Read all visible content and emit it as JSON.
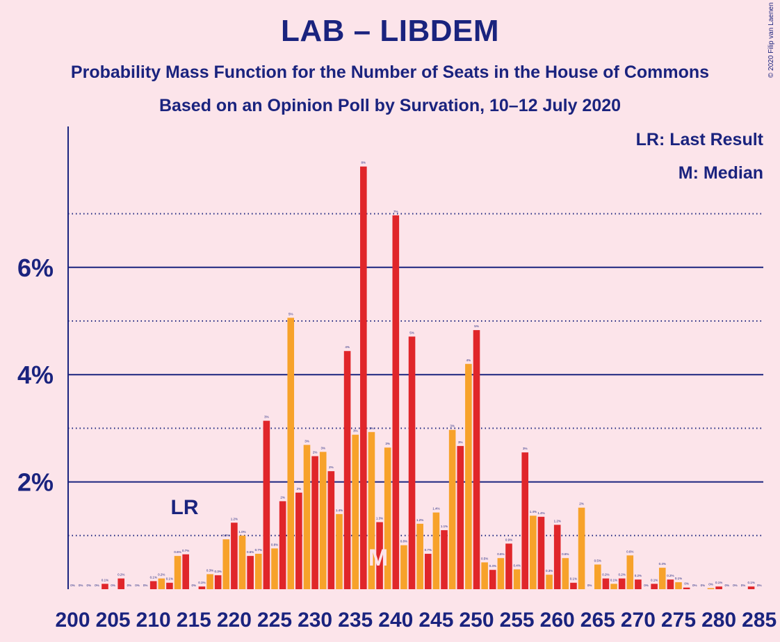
{
  "title": "LAB – LIBDEM",
  "subtitle": "Probability Mass Function for the Number of Seats in the House of Commons",
  "subtitle2": "Based on an Opinion Poll by Survation, 10–12 July 2020",
  "copyright": "© 2020 Filip van Laenen",
  "legend": {
    "last_result": "LR: Last Result",
    "median": "M: Median"
  },
  "colors": {
    "background": "#fce4ea",
    "text": "#1a237e",
    "bar_red": "#e0262a",
    "bar_orange": "#f7a22a",
    "median_marker": "#fce4ea"
  },
  "chart_data": {
    "type": "bar",
    "x_start": 200,
    "x_end": 285,
    "x_ticks": [
      200,
      205,
      210,
      215,
      220,
      225,
      230,
      235,
      240,
      245,
      250,
      255,
      260,
      265,
      270,
      275,
      280,
      285
    ],
    "y_ticks_major": [
      {
        "value": 2,
        "label": "2%"
      },
      {
        "value": 4,
        "label": "4%"
      },
      {
        "value": 6,
        "label": "6%"
      }
    ],
    "y_ticks_minor": [
      1,
      3,
      5,
      7
    ],
    "ylim": [
      0,
      8.6
    ],
    "last_result_seat": 213,
    "last_result_label": "LR",
    "median_seat": 238,
    "median_label": "M",
    "bars": [
      {
        "seat": 200,
        "value": 0.0,
        "label": "0%"
      },
      {
        "seat": 201,
        "value": 0.0,
        "label": "0%"
      },
      {
        "seat": 202,
        "value": 0.0,
        "label": "0%"
      },
      {
        "seat": 203,
        "value": 0.0,
        "label": "0%"
      },
      {
        "seat": 204,
        "value": 0.1,
        "label": "0.1%"
      },
      {
        "seat": 205,
        "value": 0.0,
        "label": "0%"
      },
      {
        "seat": 206,
        "value": 0.2,
        "label": "0.2%"
      },
      {
        "seat": 207,
        "value": 0.0,
        "label": "0%"
      },
      {
        "seat": 208,
        "value": 0.0,
        "label": "0%"
      },
      {
        "seat": 209,
        "value": 0.0,
        "label": "0%"
      },
      {
        "seat": 210,
        "value": 0.15,
        "label": "0.1%"
      },
      {
        "seat": 211,
        "value": 0.2,
        "label": "0.2%"
      },
      {
        "seat": 212,
        "value": 0.12,
        "label": "0.1%"
      },
      {
        "seat": 213,
        "value": 0.62,
        "label": "0.6%"
      },
      {
        "seat": 214,
        "value": 0.65,
        "label": "0.7%"
      },
      {
        "seat": 215,
        "value": 0.0,
        "label": "0%"
      },
      {
        "seat": 216,
        "value": 0.05,
        "label": "0.1%"
      },
      {
        "seat": 217,
        "value": 0.28,
        "label": "0.3%"
      },
      {
        "seat": 218,
        "value": 0.26,
        "label": "0.3%"
      },
      {
        "seat": 219,
        "value": 0.93,
        "label": "0.9%"
      },
      {
        "seat": 220,
        "value": 1.24,
        "label": "1.2%"
      },
      {
        "seat": 221,
        "value": 1.0,
        "label": "1.0%"
      },
      {
        "seat": 222,
        "value": 0.62,
        "label": "0.6%"
      },
      {
        "seat": 223,
        "value": 0.66,
        "label": "0.7%"
      },
      {
        "seat": 224,
        "value": 3.14,
        "label": "3%"
      },
      {
        "seat": 225,
        "value": 0.76,
        "label": "0.8%"
      },
      {
        "seat": 226,
        "value": 1.64,
        "label": "2%"
      },
      {
        "seat": 227,
        "value": 5.06,
        "label": "5%"
      },
      {
        "seat": 228,
        "value": 1.8,
        "label": "2%"
      },
      {
        "seat": 229,
        "value": 2.69,
        "label": "3%"
      },
      {
        "seat": 230,
        "value": 2.48,
        "label": "2%"
      },
      {
        "seat": 231,
        "value": 2.56,
        "label": "3%"
      },
      {
        "seat": 232,
        "value": 2.2,
        "label": "2%"
      },
      {
        "seat": 233,
        "value": 1.4,
        "label": "1.4%"
      },
      {
        "seat": 234,
        "value": 4.44,
        "label": "4%"
      },
      {
        "seat": 235,
        "value": 2.88,
        "label": "3%"
      },
      {
        "seat": 236,
        "value": 7.88,
        "label": "8%"
      },
      {
        "seat": 237,
        "value": 2.93,
        "label": "3%"
      },
      {
        "seat": 238,
        "value": 1.25,
        "label": "1.3%"
      },
      {
        "seat": 239,
        "value": 2.64,
        "label": "3%"
      },
      {
        "seat": 240,
        "value": 6.97,
        "label": "7%"
      },
      {
        "seat": 241,
        "value": 0.82,
        "label": "0.8%"
      },
      {
        "seat": 242,
        "value": 4.71,
        "label": "5%"
      },
      {
        "seat": 243,
        "value": 1.22,
        "label": "1.2%"
      },
      {
        "seat": 244,
        "value": 0.66,
        "label": "0.7%"
      },
      {
        "seat": 245,
        "value": 1.43,
        "label": "1.4%"
      },
      {
        "seat": 246,
        "value": 1.1,
        "label": "1.1%"
      },
      {
        "seat": 247,
        "value": 2.97,
        "label": "3%"
      },
      {
        "seat": 248,
        "value": 2.67,
        "label": "3%"
      },
      {
        "seat": 249,
        "value": 4.2,
        "label": "4%"
      },
      {
        "seat": 250,
        "value": 4.83,
        "label": "5%"
      },
      {
        "seat": 251,
        "value": 0.5,
        "label": "0.5%"
      },
      {
        "seat": 252,
        "value": 0.36,
        "label": "0.4%"
      },
      {
        "seat": 253,
        "value": 0.58,
        "label": "0.6%"
      },
      {
        "seat": 254,
        "value": 0.85,
        "label": "0.9%"
      },
      {
        "seat": 255,
        "value": 0.37,
        "label": "0.4%"
      },
      {
        "seat": 256,
        "value": 2.55,
        "label": "3%"
      },
      {
        "seat": 257,
        "value": 1.37,
        "label": "1.4%"
      },
      {
        "seat": 258,
        "value": 1.35,
        "label": "1.4%"
      },
      {
        "seat": 259,
        "value": 0.27,
        "label": "0.3%"
      },
      {
        "seat": 260,
        "value": 1.2,
        "label": "1.2%"
      },
      {
        "seat": 261,
        "value": 0.58,
        "label": "0.6%"
      },
      {
        "seat": 262,
        "value": 0.12,
        "label": "0.1%"
      },
      {
        "seat": 263,
        "value": 1.52,
        "label": "2%"
      },
      {
        "seat": 264,
        "value": 0.0,
        "label": "0%"
      },
      {
        "seat": 265,
        "value": 0.46,
        "label": "0.5%"
      },
      {
        "seat": 266,
        "value": 0.2,
        "label": "0.2%"
      },
      {
        "seat": 267,
        "value": 0.1,
        "label": "0.1%"
      },
      {
        "seat": 268,
        "value": 0.2,
        "label": "0.2%"
      },
      {
        "seat": 269,
        "value": 0.63,
        "label": "0.6%"
      },
      {
        "seat": 270,
        "value": 0.18,
        "label": "0.2%"
      },
      {
        "seat": 271,
        "value": 0.0,
        "label": "0%"
      },
      {
        "seat": 272,
        "value": 0.1,
        "label": "0.1%"
      },
      {
        "seat": 273,
        "value": 0.4,
        "label": "0.4%"
      },
      {
        "seat": 274,
        "value": 0.18,
        "label": "0.2%"
      },
      {
        "seat": 275,
        "value": 0.13,
        "label": "0.1%"
      },
      {
        "seat": 276,
        "value": 0.03,
        "label": "0%"
      },
      {
        "seat": 277,
        "value": 0.0,
        "label": "0%"
      },
      {
        "seat": 278,
        "value": 0.0,
        "label": "0%"
      },
      {
        "seat": 279,
        "value": 0.02,
        "label": "0%"
      },
      {
        "seat": 280,
        "value": 0.05,
        "label": "0.1%"
      },
      {
        "seat": 281,
        "value": 0.0,
        "label": "0%"
      },
      {
        "seat": 282,
        "value": 0.0,
        "label": "0%"
      },
      {
        "seat": 283,
        "value": 0.0,
        "label": "0%"
      },
      {
        "seat": 284,
        "value": 0.05,
        "label": "0.1%"
      },
      {
        "seat": 285,
        "value": 0.0,
        "label": "0%"
      }
    ]
  }
}
